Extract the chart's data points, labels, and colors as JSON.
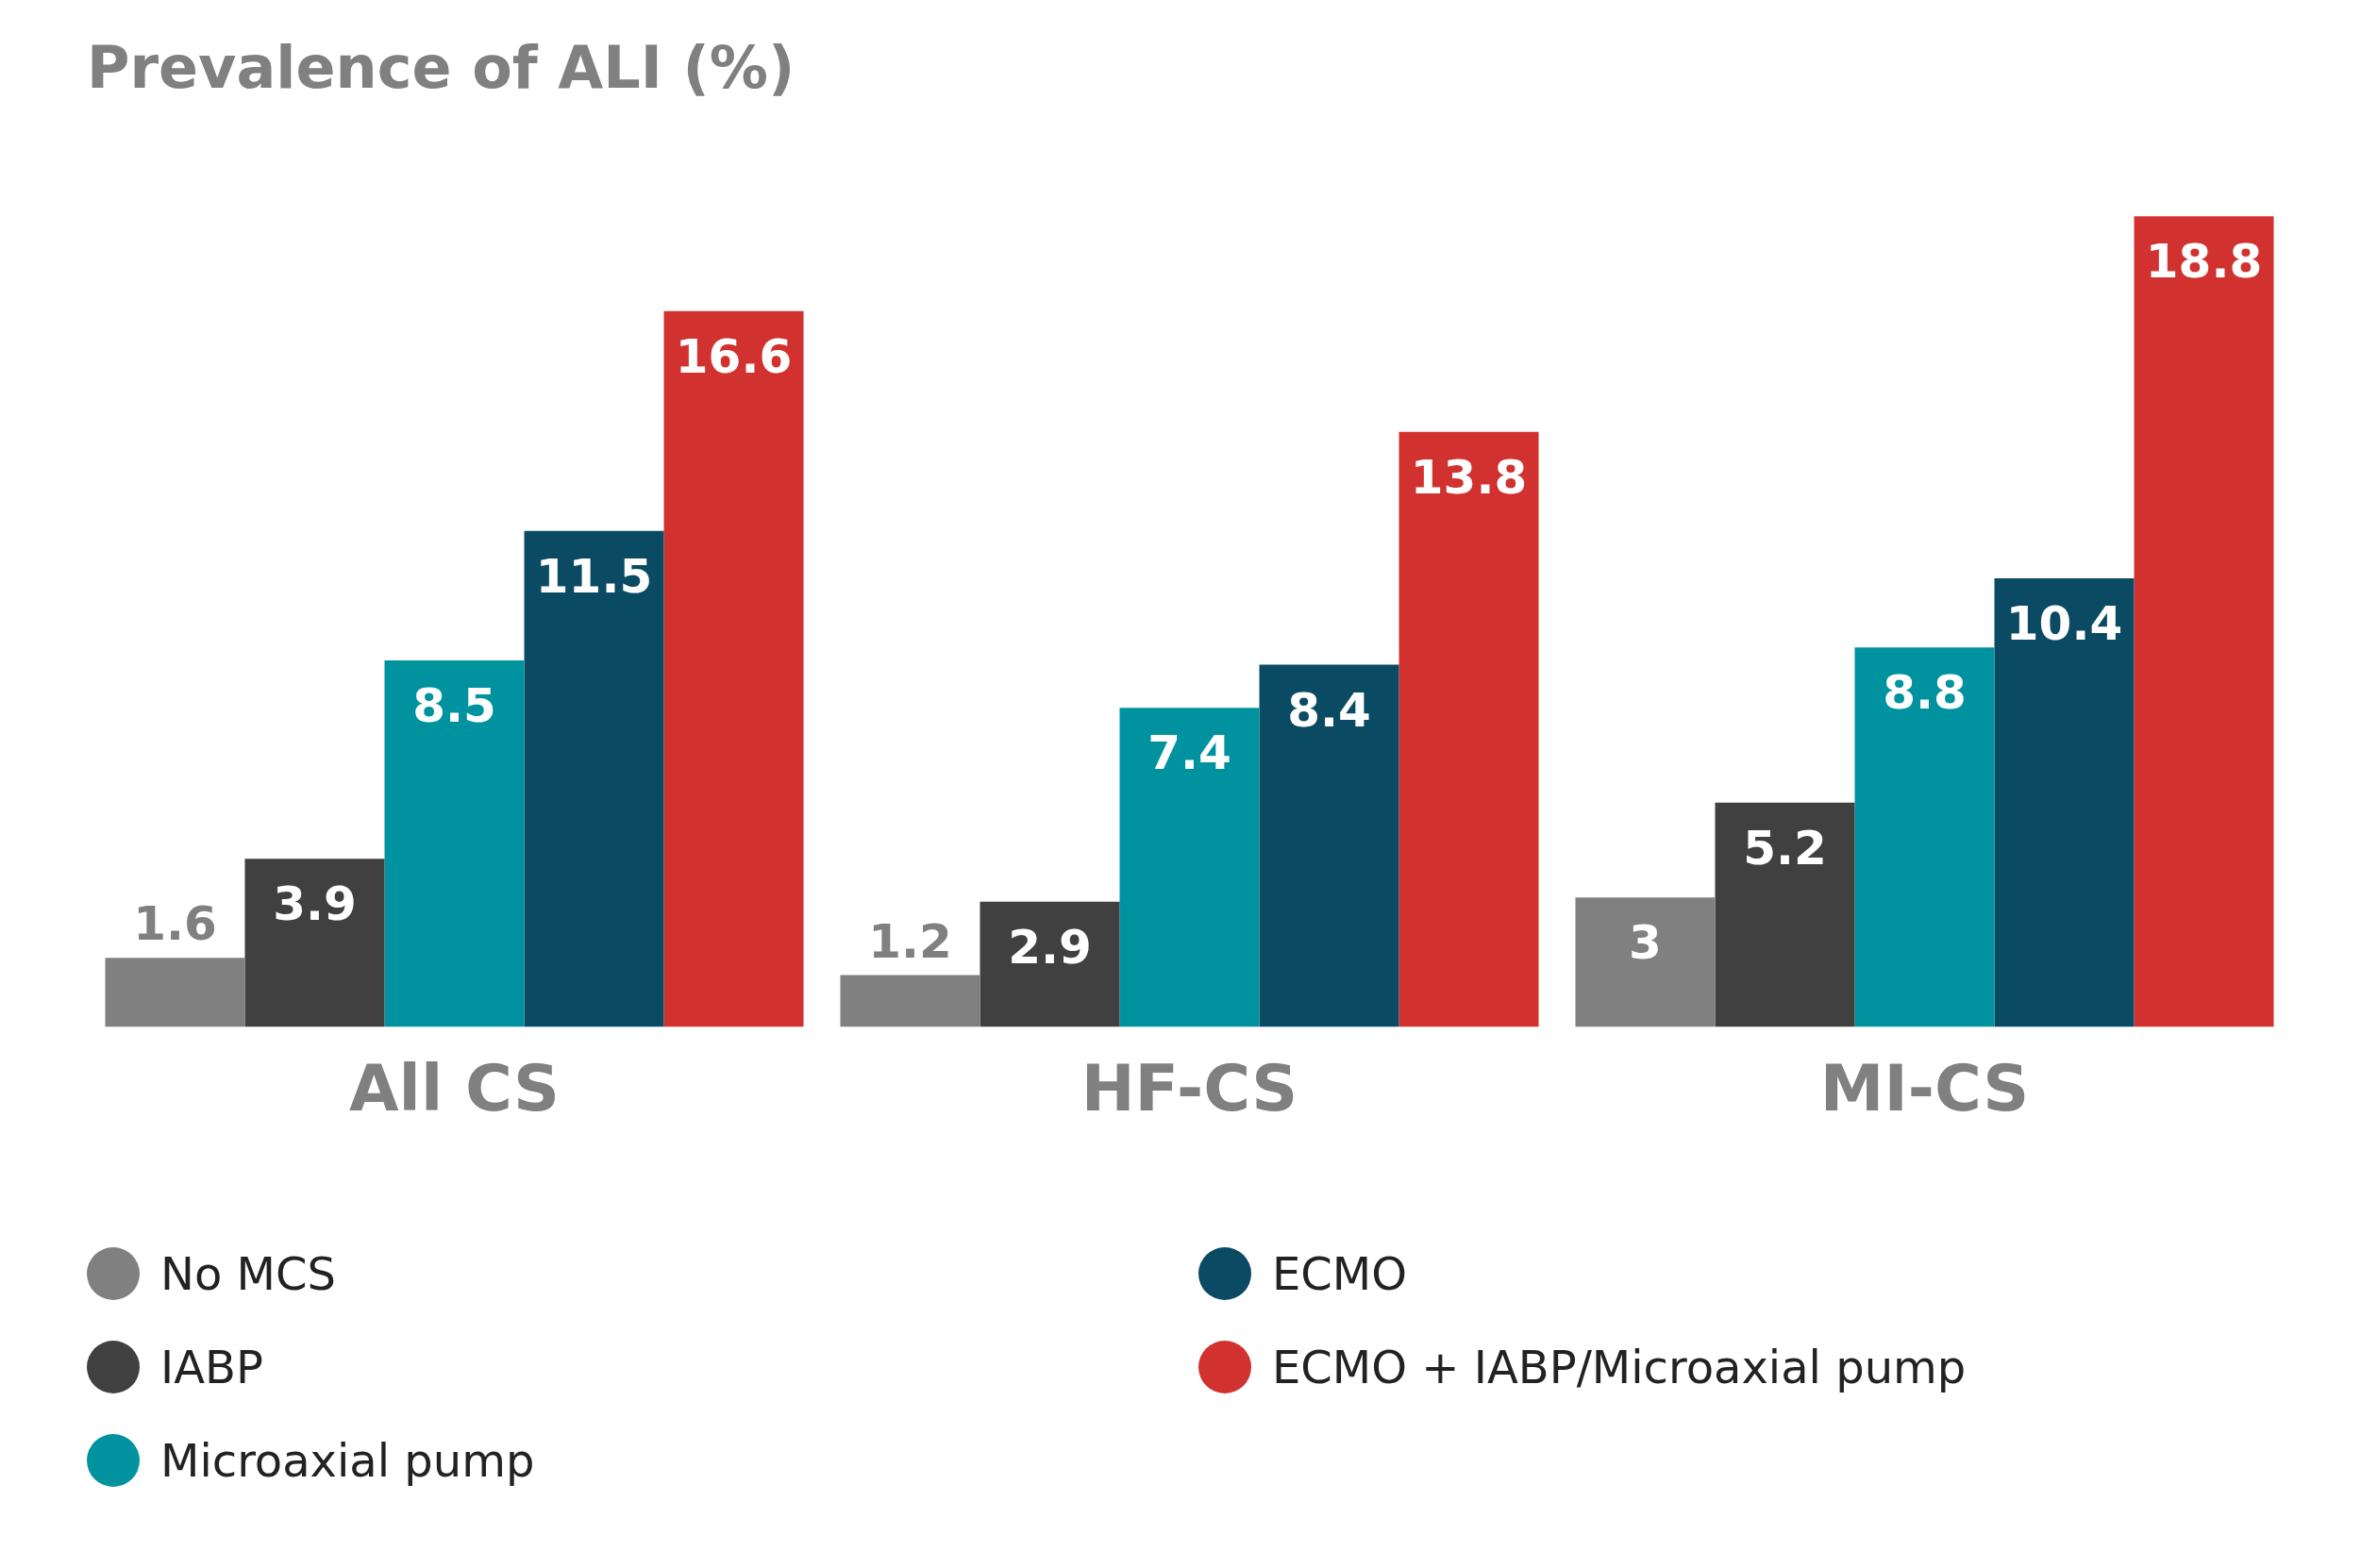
{
  "chart_data": {
    "type": "bar",
    "title": "Prevalence of ALI (%)",
    "categories": [
      "All CS",
      "HF-CS",
      "MI-CS"
    ],
    "series": [
      {
        "name": "No MCS",
        "color": "#808080",
        "values": [
          1.6,
          1.2,
          3
        ]
      },
      {
        "name": "IABP",
        "color": "#404040",
        "values": [
          3.9,
          2.9,
          5.2
        ]
      },
      {
        "name": "Microaxial pump",
        "color": "#00939f",
        "values": [
          8.5,
          7.4,
          8.8
        ]
      },
      {
        "name": "ECMO",
        "color": "#0b4a63",
        "values": [
          11.5,
          8.4,
          10.4
        ]
      },
      {
        "name": "ECMO + IABP/Microaxial pump",
        "color": "#d13230",
        "values": [
          16.6,
          13.8,
          18.8
        ]
      }
    ],
    "data_labels": true,
    "legend": "bottom",
    "grid": false
  }
}
